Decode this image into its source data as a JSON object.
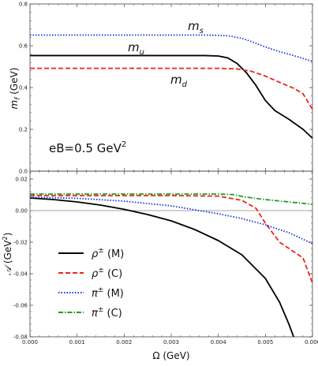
{
  "colors": {
    "black": "#000000",
    "red": "#e8261c",
    "blue": "#1f2ee6",
    "green": "#1e9e1e",
    "frame": "#444444",
    "zero_line": "#888888"
  },
  "chart_data": [
    {
      "type": "line",
      "panel": "top",
      "xlabel": "",
      "ylabel": "m_f (GeV)",
      "ylabel_main": "m",
      "ylabel_sub": "f",
      "ylabel_unit": " (GeV)",
      "xlim": [
        0,
        0.006
      ],
      "ylim": [
        0,
        0.8
      ],
      "yticks": [
        0,
        0.2,
        0.4,
        0.6,
        0.8
      ],
      "ytick_labels": [
        "0.0",
        "0.2",
        "0.4",
        "0.6",
        "0.8"
      ],
      "grid": false,
      "annotation_eB": "eB=0.5 GeV",
      "annotation_eB_sup": "2",
      "curve_labels": [
        {
          "main": "m",
          "sub": "s"
        },
        {
          "main": "m",
          "sub": "u"
        },
        {
          "main": "m",
          "sub": "d"
        }
      ],
      "series": [
        {
          "name": "m_s",
          "color": "blue",
          "style": "dotted",
          "x": [
            0,
            0.001,
            0.002,
            0.003,
            0.0038,
            0.0042,
            0.0045,
            0.0048,
            0.005,
            0.0053,
            0.0056,
            0.006
          ],
          "y": [
            0.651,
            0.651,
            0.651,
            0.651,
            0.651,
            0.648,
            0.636,
            0.612,
            0.594,
            0.572,
            0.553,
            0.525
          ]
        },
        {
          "name": "m_u",
          "color": "black",
          "style": "solid",
          "x": [
            0,
            0.001,
            0.002,
            0.003,
            0.0037,
            0.004,
            0.0042,
            0.0044,
            0.0046,
            0.0048,
            0.005,
            0.0052,
            0.0055,
            0.0058,
            0.006
          ],
          "y": [
            0.553,
            0.553,
            0.553,
            0.553,
            0.553,
            0.551,
            0.542,
            0.515,
            0.47,
            0.41,
            0.338,
            0.29,
            0.248,
            0.2,
            0.158
          ]
        },
        {
          "name": "m_d",
          "color": "red",
          "style": "dashed",
          "x": [
            0,
            0.001,
            0.002,
            0.003,
            0.004,
            0.0044,
            0.0047,
            0.005,
            0.0053,
            0.0056,
            0.0058,
            0.006
          ],
          "y": [
            0.492,
            0.492,
            0.492,
            0.492,
            0.492,
            0.489,
            0.478,
            0.455,
            0.425,
            0.397,
            0.37,
            0.296
          ]
        }
      ]
    },
    {
      "type": "line",
      "panel": "bottom",
      "xlabel": "Ω (GeV)",
      "ylabel": "𝒜 (GeV²)",
      "ylabel_main": "𝒜",
      "ylabel_unit": " (GeV",
      "ylabel_sup": "2",
      "ylabel_close": ")",
      "xlim": [
        0,
        0.006
      ],
      "ylim": [
        -0.08,
        0.025
      ],
      "xticks": [
        0,
        0.001,
        0.002,
        0.003,
        0.004,
        0.005,
        0.006
      ],
      "xtick_labels": [
        "0.000",
        "0.001",
        "0.002",
        "0.003",
        "0.004",
        "0.005",
        "0.006"
      ],
      "yticks": [
        -0.08,
        -0.06,
        -0.04,
        -0.02,
        0,
        0.02
      ],
      "ytick_labels": [
        "-0.08",
        "-0.06",
        "-0.04",
        "-0.02",
        "0.00",
        "0.02"
      ],
      "grid": false,
      "legend_position": "bottom-left",
      "series": [
        {
          "name": "ρ± (M)",
          "name_main": "ρ",
          "name_sup": "±",
          "name_rest": " (M)",
          "color": "black",
          "style": "solid",
          "x": [
            0,
            0.0005,
            0.001,
            0.0015,
            0.002,
            0.0025,
            0.003,
            0.0035,
            0.004,
            0.0045,
            0.005,
            0.0053,
            0.0055,
            0.0056
          ],
          "y": [
            0.008,
            0.007,
            0.0055,
            0.0035,
            0.0008,
            -0.0025,
            -0.0065,
            -0.012,
            -0.019,
            -0.028,
            -0.043,
            -0.058,
            -0.072,
            -0.08
          ]
        },
        {
          "name": "ρ± (C)",
          "name_main": "ρ",
          "name_sup": "±",
          "name_rest": " (C)",
          "color": "red",
          "style": "dashed",
          "x": [
            0,
            0.001,
            0.002,
            0.003,
            0.004,
            0.0045,
            0.0048,
            0.005,
            0.0053,
            0.0056,
            0.0058,
            0.006
          ],
          "y": [
            0.0095,
            0.0095,
            0.0095,
            0.0095,
            0.0092,
            0.0065,
            0.0015,
            -0.008,
            -0.02,
            -0.026,
            -0.03,
            -0.046
          ]
        },
        {
          "name": "π± (M)",
          "name_main": "π",
          "name_sup": "±",
          "name_rest": " (M)",
          "color": "blue",
          "style": "dotted",
          "x": [
            0,
            0.001,
            0.002,
            0.003,
            0.004,
            0.0045,
            0.005,
            0.0055,
            0.006
          ],
          "y": [
            0.0085,
            0.0078,
            0.006,
            0.003,
            -0.002,
            -0.005,
            -0.009,
            -0.014,
            -0.021
          ]
        },
        {
          "name": "π± (C)",
          "name_main": "π",
          "name_sup": "±",
          "name_rest": " (C)",
          "color": "green",
          "style": "dashdot",
          "x": [
            0,
            0.001,
            0.002,
            0.003,
            0.004,
            0.0043,
            0.0046,
            0.005,
            0.0055,
            0.006
          ],
          "y": [
            0.0105,
            0.0105,
            0.0105,
            0.0105,
            0.0105,
            0.0102,
            0.0085,
            0.007,
            0.0055,
            0.004
          ]
        }
      ]
    }
  ]
}
